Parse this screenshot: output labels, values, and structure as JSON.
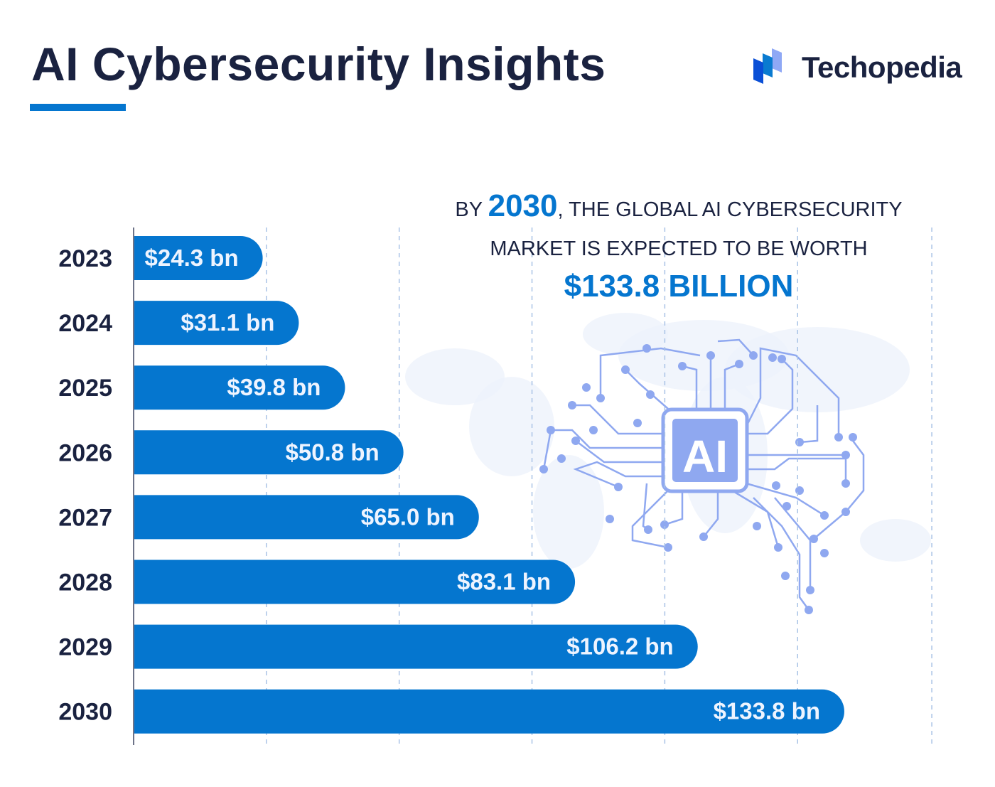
{
  "title": "AI Cybersecurity Insights",
  "brand": {
    "name": "Techopedia",
    "icon": "techopedia-logo-icon"
  },
  "headline": {
    "prefix": "BY ",
    "year": "2030",
    "line1_rest": ", THE GLOBAL AI CYBERSECURITY",
    "line2": "MARKET IS EXPECTED TO BE WORTH",
    "value": "$133.8 BILLION"
  },
  "colors": {
    "bar": "#0576cf",
    "text": "#1a2240",
    "grid": "#a9c3e6",
    "circuit": "#8fa8f0"
  },
  "chart_data": {
    "type": "bar",
    "orientation": "horizontal",
    "categories": [
      "2023",
      "2024",
      "2025",
      "2026",
      "2027",
      "2028",
      "2029",
      "2030"
    ],
    "values": [
      24.3,
      31.1,
      39.8,
      50.8,
      65.0,
      83.1,
      106.2,
      133.8
    ],
    "data_labels": [
      "$24.3 bn",
      "$31.1 bn",
      "$39.8 bn",
      "$50.8 bn",
      "$65.0 bn",
      "$83.1 bn",
      "$106.2 bn",
      "$133.8 bn"
    ],
    "unit": "bn USD",
    "xlim": [
      0,
      150
    ],
    "grid": "vertical-dashed",
    "legend": "none"
  }
}
